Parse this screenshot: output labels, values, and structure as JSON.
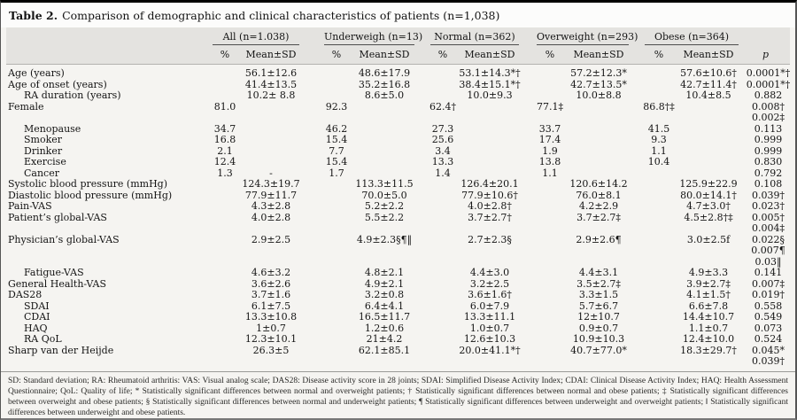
{
  "title": {
    "label": "Table 2.",
    "text": "Comparison of demographic and clinical characteristics of patients (n=1,038)"
  },
  "header": {
    "groups": [
      "All (n=1.038)",
      "Underweigh (n=13)",
      "Normal (n=362)",
      "Overweight (n=293)",
      "Obese (n=364)"
    ],
    "pct_label": "%",
    "mean_label": "Mean±SD",
    "p_label": "p"
  },
  "table": {
    "rows": [
      {
        "label": "Age (years)",
        "indent": false,
        "cells": [
          "",
          "56.1±12.6",
          "",
          "48.6±17.9",
          "",
          "53.1±14.3*†",
          "",
          "57.2±12.3*",
          "",
          "57.6±10.6†"
        ],
        "p": "0.0001*†"
      },
      {
        "label": "Age of onset (years)",
        "indent": false,
        "cells": [
          "",
          "41.4±13.5",
          "",
          "35.2±16.8",
          "",
          "38.4±15.1*†",
          "",
          "42.7±13.5*",
          "",
          "42.7±11.4†"
        ],
        "p": "0.0001*†"
      },
      {
        "label": "RA duration (years)",
        "indent": true,
        "cells": [
          "",
          "10.2± 8.8",
          "",
          "8.6±5.0",
          "",
          "10.0±9.3",
          "",
          "10.0±8.8",
          "",
          "10.4±8.5"
        ],
        "p": "0.882"
      },
      {
        "label": "Female",
        "indent": false,
        "cells": [
          "81.0",
          "",
          "92.3",
          "",
          "62.4†",
          "",
          "77.1‡",
          "",
          "86.8†‡",
          ""
        ],
        "p": "0.008†"
      },
      {
        "label": "",
        "cont": true,
        "cells": [
          "",
          "",
          "",
          "",
          "",
          "",
          "",
          "",
          "",
          ""
        ],
        "p": "0.002‡"
      },
      {
        "label": "Menopause",
        "indent": true,
        "cells": [
          "34.7",
          "",
          "46.2",
          "",
          "27.3",
          "",
          "33.7",
          "",
          "41.5",
          ""
        ],
        "p": "0.113"
      },
      {
        "label": "Smoker",
        "indent": true,
        "cells": [
          "16.8",
          "",
          "15.4",
          "",
          "25.6",
          "",
          "17.4",
          "",
          "9.3",
          ""
        ],
        "p": "0.999"
      },
      {
        "label": "Drinker",
        "indent": true,
        "cells": [
          "2.1",
          "",
          "7.7",
          "",
          "3.4",
          "",
          "1.9",
          "",
          "1.1",
          ""
        ],
        "p": "0.999"
      },
      {
        "label": "Exercise",
        "indent": true,
        "cells": [
          "12.4",
          "",
          "15.4",
          "",
          "13.3",
          "",
          "13.8",
          "",
          "10.4",
          ""
        ],
        "p": "0.830"
      },
      {
        "label": "Cancer",
        "indent": true,
        "cells": [
          "1.3",
          "-",
          "1.7",
          "",
          "1.4",
          "",
          "1.1",
          "",
          "",
          ""
        ],
        "p": "0.792"
      },
      {
        "label": "Systolic blood pressure (mmHg)",
        "indent": false,
        "cells": [
          "",
          "124.3±19.7",
          "",
          "113.3±11.5",
          "",
          "126.4±20.1",
          "",
          "120.6±14.2",
          "",
          "125.9±22.9"
        ],
        "p": "0.108"
      },
      {
        "label": "Diastolic blood pressure (mmHg)",
        "indent": false,
        "cells": [
          "",
          "77.9±11.7",
          "",
          "70.0±5.0",
          "",
          "77.9±10.6†",
          "",
          "76.0±8.1",
          "",
          "80.0±14.1†"
        ],
        "p": "0.039†"
      },
      {
        "label": "Pain-VAS",
        "indent": false,
        "cells": [
          "",
          "4.3±2.8",
          "",
          "5.2±2.2",
          "",
          "4.0±2.8†",
          "",
          "4.2±2.9",
          "",
          "4.7±3.0†"
        ],
        "p": "0.023†"
      },
      {
        "label": "Patient’s global-VAS",
        "indent": false,
        "cells": [
          "",
          "4.0±2.8",
          "",
          "5.5±2.2",
          "",
          "3.7±2.7†",
          "",
          "3.7±2.7‡",
          "",
          "4.5±2.8†‡"
        ],
        "p": "0.005†"
      },
      {
        "label": "",
        "cont": true,
        "cells": [
          "",
          "",
          "",
          "",
          "",
          "",
          "",
          "",
          "",
          ""
        ],
        "p": "0.004‡"
      },
      {
        "label": "Physician’s global-VAS",
        "indent": false,
        "cells": [
          "",
          "2.9±2.5",
          "",
          "4.9±2.3§¶‖",
          "",
          "2.7±2.3§",
          "",
          "2.9±2.6¶",
          "",
          "3.0±2.5f"
        ],
        "p": "0.022§"
      },
      {
        "label": "",
        "cont": true,
        "cells": [
          "",
          "",
          "",
          "",
          "",
          "",
          "",
          "",
          "",
          ""
        ],
        "p": "0.007¶"
      },
      {
        "label": "",
        "cont": true,
        "cells": [
          "",
          "",
          "",
          "",
          "",
          "",
          "",
          "",
          "",
          ""
        ],
        "p": "0.03‖"
      },
      {
        "label": "Fatigue-VAS",
        "indent": true,
        "cells": [
          "",
          "4.6±3.2",
          "",
          "4.8±2.1",
          "",
          "4.4±3.0",
          "",
          "4.4±3.1",
          "",
          "4.9±3.3"
        ],
        "p": "0.141"
      },
      {
        "label": "General Health-VAS",
        "indent": false,
        "cells": [
          "",
          "3.6±2.6",
          "",
          "4.9±2.1",
          "",
          "3.2±2.5",
          "",
          "3.5±2.7‡",
          "",
          "3.9±2.7‡"
        ],
        "p": "0.007‡"
      },
      {
        "label": "DAS28",
        "indent": false,
        "cells": [
          "",
          "3.7±1.6",
          "",
          "3.2±0.8",
          "",
          "3.6±1.6†",
          "",
          "3.3±1.5",
          "",
          "4.1±1.5†"
        ],
        "p": "0.019†"
      },
      {
        "label": "SDAI",
        "indent": true,
        "cells": [
          "",
          "6.1±7.5",
          "",
          "6.4±4.1",
          "",
          "6.0±7.9",
          "",
          "5.7±6.7",
          "",
          "6.6±7.8"
        ],
        "p": "0.558"
      },
      {
        "label": "CDAI",
        "indent": true,
        "cells": [
          "",
          "13.3±10.8",
          "",
          "16.5±11.7",
          "",
          "13.3±11.1",
          "",
          "12±10.7",
          "",
          "14.4±10.7"
        ],
        "p": "0.549"
      },
      {
        "label": "HAQ",
        "indent": true,
        "cells": [
          "",
          "1±0.7",
          "",
          "1.2±0.6",
          "",
          "1.0±0.7",
          "",
          "0.9±0.7",
          "",
          "1.1±0.7"
        ],
        "p": "0.073"
      },
      {
        "label": "RA QoL",
        "indent": true,
        "cells": [
          "",
          "12.3±10.1",
          "",
          "21±4.2",
          "",
          "12.6±10.3",
          "",
          "10.9±10.3",
          "",
          "12.4±10.0"
        ],
        "p": "0.524"
      },
      {
        "label": "Sharp van der Heijde",
        "indent": false,
        "cells": [
          "",
          "26.3±5",
          "",
          "62.1±85.1",
          "",
          "20.0±41.1*†",
          "",
          "40.7±77.0*",
          "",
          "18.3±29.7†"
        ],
        "p": "0.045*"
      },
      {
        "label": "",
        "cont": true,
        "cells": [
          "",
          "",
          "",
          "",
          "",
          "",
          "",
          "",
          "",
          ""
        ],
        "p": "0.039†"
      }
    ]
  },
  "footnote": "SD: Standard deviation; RA: Rheumatoid arthritis: VAS: Visual analog scale; DAS28: Disease activity score in 28 joints; SDAI: Simplified Disease Activity Index; CDAI: Clinical Disease Activity Index; HAQ: Health Assessment Questionnaire; QoL: Quality of life; * Statistically significant differences between normal and overweight patients; † Statistically significant differences between normal and obese patients; ‡ Statistically significant differences between overweight and obese patients; § Statistically significant differences between normal and underweight patients; ¶ Statistically significant differences between underweight and overweight patients; ‖ Statistically significant differences between underweight and obese patients."
}
